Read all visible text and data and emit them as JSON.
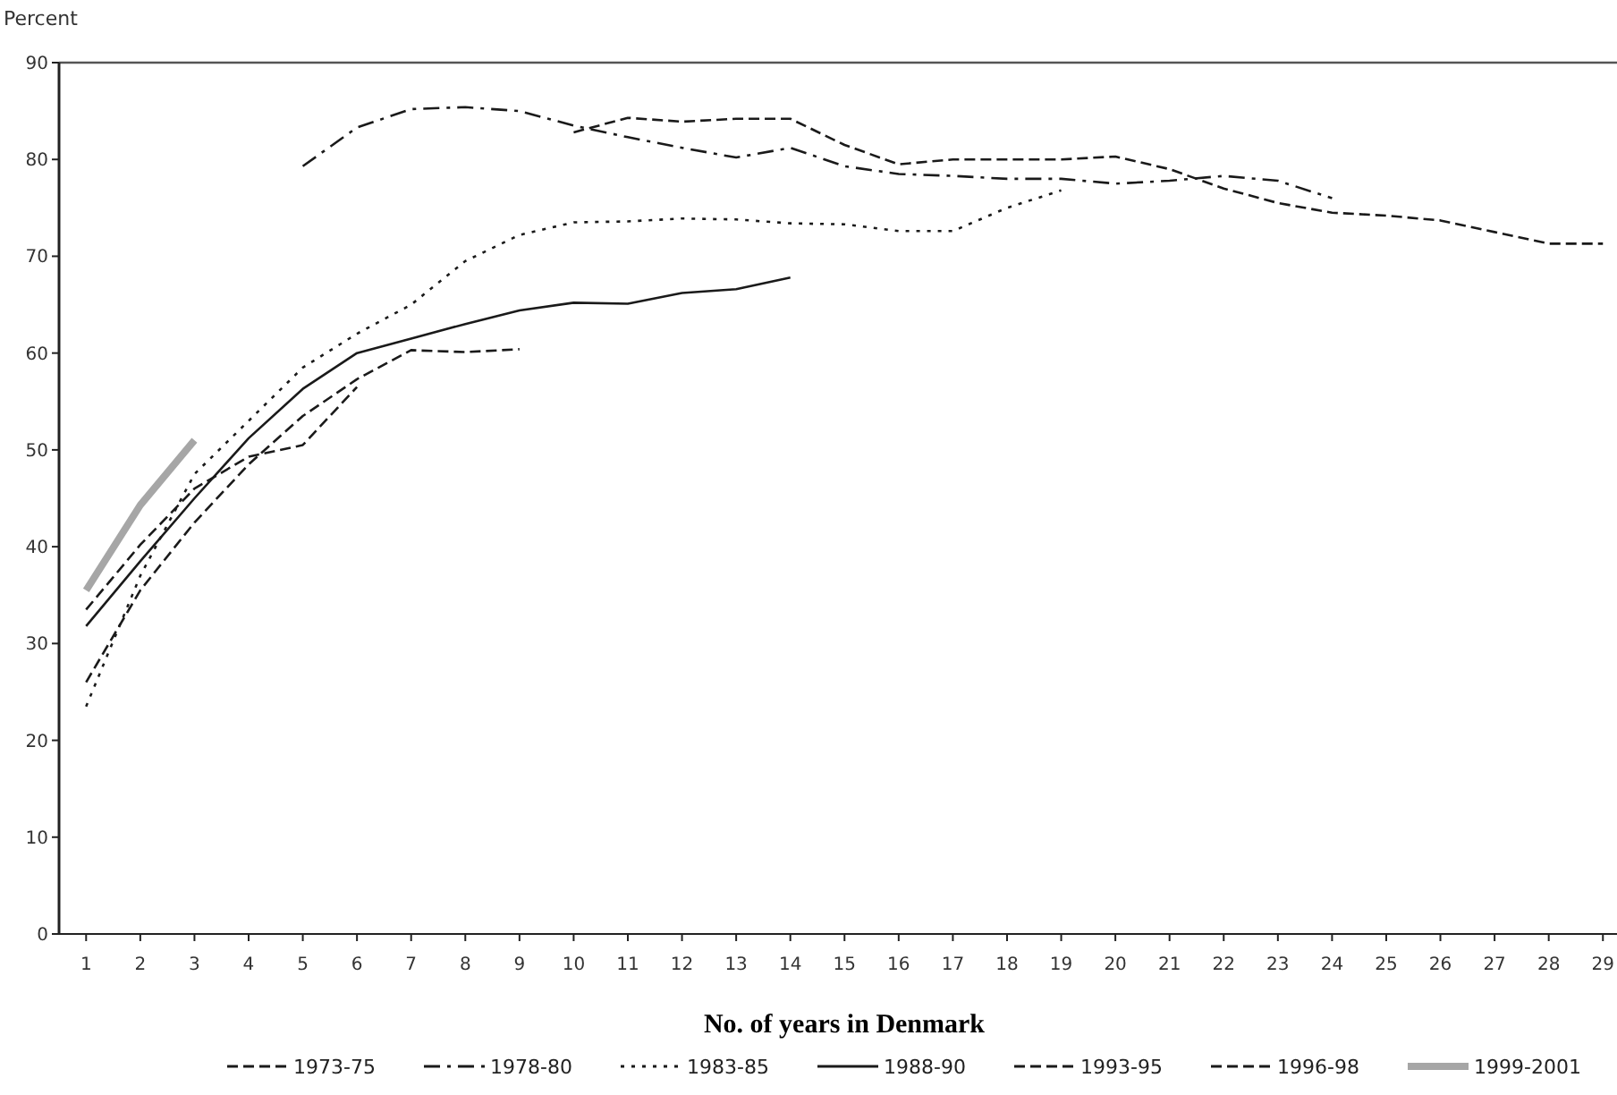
{
  "chart_data": {
    "type": "line",
    "xlabel": "No. of years in Denmark",
    "ylabel": "Percent",
    "xlim": [
      0.5,
      29.26
    ],
    "xticks": [
      1,
      2,
      3,
      4,
      5,
      6,
      7,
      8,
      9,
      10,
      11,
      12,
      13,
      14,
      15,
      16,
      17,
      18,
      19,
      20,
      21,
      22,
      23,
      24,
      25,
      26,
      27,
      28,
      29
    ],
    "ylim": [
      0,
      90
    ],
    "yticks": [
      0,
      10,
      20,
      30,
      40,
      50,
      60,
      70,
      80,
      90
    ],
    "grid": false,
    "legend": "bottom",
    "series": [
      {
        "name": "1973-75",
        "color": "#1a1a1a",
        "line_style": "dashed",
        "x": [
          10,
          11,
          12,
          13,
          14,
          15,
          16,
          17,
          18,
          19,
          20,
          21,
          22,
          23,
          24,
          25,
          26,
          27,
          28,
          29
        ],
        "values": [
          82.8,
          84.3,
          83.9,
          84.2,
          84.2,
          81.5,
          79.5,
          80,
          80,
          80,
          80.3,
          79,
          77,
          75.5,
          74.5,
          74.2,
          73.7,
          72.5,
          71.3,
          71.3
        ]
      },
      {
        "name": "1978-80",
        "color": "#1a1a1a",
        "line_style": "dashdot",
        "x": [
          5,
          6,
          7,
          8,
          9,
          10,
          11,
          12,
          13,
          14,
          15,
          16,
          17,
          18,
          19,
          20,
          21,
          22,
          23,
          24
        ],
        "values": [
          79.3,
          83.3,
          85.2,
          85.4,
          85,
          83.5,
          82.3,
          81.2,
          80.2,
          81.2,
          79.3,
          78.5,
          78.3,
          78,
          78,
          77.5,
          77.8,
          78.3,
          77.8,
          76
        ]
      },
      {
        "name": "1983-85",
        "color": "#1a1a1a",
        "line_style": "dotted",
        "x": [
          1,
          2,
          3,
          4,
          5,
          6,
          7,
          8,
          9,
          10,
          11,
          12,
          13,
          14,
          15,
          16,
          17,
          18,
          19
        ],
        "values": [
          23.5,
          37,
          47.5,
          53,
          58.5,
          62,
          65,
          69.5,
          72.2,
          73.5,
          73.6,
          73.9,
          73.8,
          73.4,
          73.3,
          72.6,
          72.6,
          75,
          76.8
        ]
      },
      {
        "name": "1988-90",
        "color": "#1a1a1a",
        "line_style": "solid",
        "x": [
          1,
          2,
          3,
          4,
          5,
          6,
          7,
          8,
          9,
          10,
          11,
          12,
          13,
          14
        ],
        "values": [
          31.8,
          38.5,
          45,
          51.2,
          56.3,
          60,
          61.5,
          63,
          64.4,
          65.2,
          65.1,
          66.2,
          66.6,
          67.8
        ]
      },
      {
        "name": "1993-95",
        "color": "#1a1a1a",
        "line_style": "dashed",
        "x": [
          1,
          2,
          3,
          4,
          5,
          6,
          7,
          8,
          9
        ],
        "values": [
          26,
          35.5,
          42.5,
          48.5,
          53.5,
          57.3,
          60.3,
          60.1,
          60.4
        ]
      },
      {
        "name": "1996-98",
        "color": "#1a1a1a",
        "line_style": "dashed",
        "x": [
          1,
          2,
          3,
          4,
          5,
          6
        ],
        "values": [
          33.5,
          40.2,
          46,
          49.3,
          50.5,
          56.5
        ]
      },
      {
        "name": "1999-2001",
        "color": "#a6a6a6",
        "line_style": "solid",
        "x": [
          1,
          2,
          3
        ],
        "values": [
          35.5,
          44.3,
          51
        ]
      }
    ]
  }
}
